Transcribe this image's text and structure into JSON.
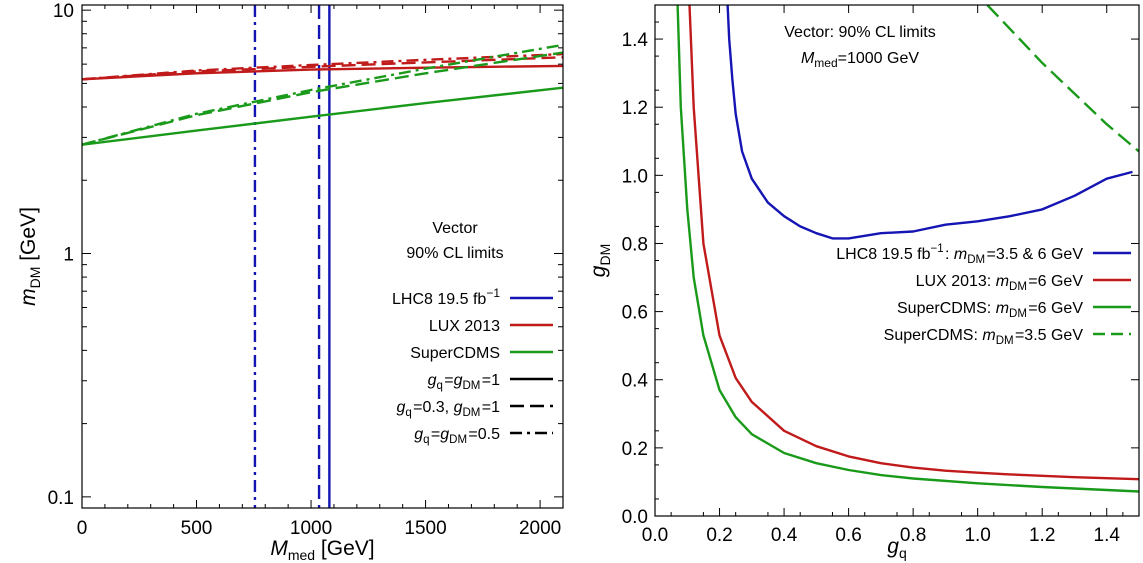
{
  "chart_data": [
    {
      "type": "line",
      "title": "",
      "xlabel_main": "M",
      "xlabel_sub": "med",
      "xlabel_unit": " [GeV]",
      "ylabel_main": "m",
      "ylabel_sub": "DM",
      "ylabel_unit": " [GeV]",
      "xlim": [
        0,
        2100
      ],
      "ylim": [
        0.09,
        10.5
      ],
      "y_scale": "log",
      "x_ticks": [
        0,
        500,
        1000,
        1500,
        2000
      ],
      "x_tick_labels": [
        "0",
        "500",
        "1000",
        "1500",
        "2000"
      ],
      "y_ticks": [
        0.1,
        1,
        10
      ],
      "y_tick_labels": [
        "0.1",
        "1",
        "10"
      ],
      "grid": false,
      "legend_placement": "right",
      "legend_title_1": "Vector",
      "legend_title_2": "90% CL limits",
      "legend": [
        {
          "text": "LHC8 19.5 fb",
          "sup": "−1",
          "color": "#1515b3",
          "dash": "solid"
        },
        {
          "text": "LUX 2013",
          "color": "#c01a1a",
          "dash": "solid"
        },
        {
          "text": "SuperCDMS",
          "color": "#1a9a1a",
          "dash": "solid"
        },
        {
          "rich": "g_q=g_DM=1",
          "color": "#000000",
          "dash": "solid"
        },
        {
          "rich": "g_q=0.3, g_DM=1",
          "color": "#000000",
          "dash": "dashed"
        },
        {
          "rich": "g_q=g_DM=0.5",
          "color": "#000000",
          "dash": "dashdot"
        }
      ],
      "series": [
        {
          "experiment": "LHC8",
          "coupling": "g_q=g_DM=1",
          "color": "#1515b3",
          "dash": "solid",
          "vertical_x": 1080
        },
        {
          "experiment": "LHC8",
          "coupling": "g_q=0.3, g_DM=1",
          "color": "#1515b3",
          "dash": "dashed",
          "vertical_x": 1035
        },
        {
          "experiment": "LHC8",
          "coupling": "g_q=g_DM=0.5",
          "color": "#1515b3",
          "dash": "dashdot",
          "vertical_x": 755
        },
        {
          "experiment": "LUX 2013",
          "coupling": "g_q=g_DM=1",
          "color": "#c01a1a",
          "dash": "solid",
          "x": [
            0,
            500,
            1000,
            1500,
            2100
          ],
          "y": [
            5.2,
            5.5,
            5.7,
            5.8,
            5.9
          ]
        },
        {
          "experiment": "LUX 2013",
          "coupling": "g_q=0.3, g_DM=1",
          "color": "#c01a1a",
          "dash": "dashed",
          "x": [
            0,
            500,
            1000,
            1500,
            2100
          ],
          "y": [
            5.2,
            5.6,
            5.85,
            6.1,
            6.4
          ]
        },
        {
          "experiment": "LUX 2013",
          "coupling": "g_q=g_DM=0.5",
          "color": "#c01a1a",
          "dash": "dashdot",
          "x": [
            0,
            500,
            1000,
            1500,
            2100
          ],
          "y": [
            5.2,
            5.65,
            5.95,
            6.25,
            6.6
          ]
        },
        {
          "experiment": "SuperCDMS",
          "coupling": "g_q=g_DM=1",
          "color": "#1a9a1a",
          "dash": "solid",
          "x": [
            0,
            500,
            1000,
            1500,
            2100
          ],
          "y": [
            2.8,
            3.2,
            3.65,
            4.15,
            4.8
          ]
        },
        {
          "experiment": "SuperCDMS",
          "coupling": "g_q=0.3, g_DM=1",
          "color": "#1a9a1a",
          "dash": "dashed",
          "x": [
            0,
            500,
            1000,
            1500,
            2100
          ],
          "y": [
            2.8,
            3.7,
            4.6,
            5.5,
            6.7
          ]
        },
        {
          "experiment": "SuperCDMS",
          "coupling": "g_q=g_DM=0.5",
          "color": "#1a9a1a",
          "dash": "dashdot",
          "x": [
            0,
            500,
            1000,
            1500,
            2100
          ],
          "y": [
            2.8,
            3.75,
            4.7,
            5.75,
            7.2
          ]
        }
      ]
    },
    {
      "type": "line",
      "title": "",
      "annotation_1": "Vector: 90% CL limits",
      "annotation_2_main": "M",
      "annotation_2_sub": "med",
      "annotation_2_rest": "=1000 GeV",
      "xlabel_main": "g",
      "xlabel_sub": "q",
      "ylabel_main": "g",
      "ylabel_sub": "DM",
      "xlim": [
        0,
        1.5
      ],
      "ylim": [
        0,
        1.5
      ],
      "x_ticks": [
        0.0,
        0.2,
        0.4,
        0.6,
        0.8,
        1.0,
        1.2,
        1.4
      ],
      "x_tick_labels": [
        "0.0",
        "0.2",
        "0.4",
        "0.6",
        "0.8",
        "1.0",
        "1.2",
        "1.4"
      ],
      "y_ticks": [
        0.0,
        0.2,
        0.4,
        0.6,
        0.8,
        1.0,
        1.2,
        1.4
      ],
      "y_tick_labels": [
        "0.0",
        "0.2",
        "0.4",
        "0.6",
        "0.8",
        "1.0",
        "1.2",
        "1.4"
      ],
      "grid": false,
      "legend_placement": "right",
      "legend": [
        {
          "rich": "LHC8 19.5 fb^-1: m_DM=3.5 & 6 GeV",
          "color": "#1515b3",
          "dash": "solid"
        },
        {
          "rich": "LUX 2013: m_DM=6 GeV",
          "color": "#c01a1a",
          "dash": "solid"
        },
        {
          "rich": "SuperCDMS: m_DM=6 GeV",
          "color": "#1a9a1a",
          "dash": "solid"
        },
        {
          "rich": "SuperCDMS: m_DM=3.5 GeV",
          "color": "#1a9a1a",
          "dash": "dashed"
        }
      ],
      "series": [
        {
          "name": "LHC8 19.5 fb^-1: m_DM=3.5 & 6 GeV",
          "color": "#1515b3",
          "dash": "solid",
          "x": [
            0.225,
            0.23,
            0.24,
            0.25,
            0.27,
            0.3,
            0.35,
            0.4,
            0.45,
            0.5,
            0.55,
            0.6,
            0.7,
            0.8,
            0.9,
            1.0,
            1.1,
            1.2,
            1.3,
            1.4,
            1.48
          ],
          "y": [
            1.5,
            1.4,
            1.28,
            1.18,
            1.07,
            0.99,
            0.92,
            0.88,
            0.85,
            0.83,
            0.815,
            0.815,
            0.83,
            0.835,
            0.855,
            0.865,
            0.88,
            0.9,
            0.94,
            0.99,
            1.01
          ]
        },
        {
          "name": "LUX 2013: m_DM=6 GeV",
          "color": "#c01a1a",
          "dash": "solid",
          "x": [
            0.107,
            0.12,
            0.15,
            0.2,
            0.25,
            0.3,
            0.4,
            0.5,
            0.6,
            0.7,
            0.8,
            0.9,
            1.0,
            1.1,
            1.2,
            1.3,
            1.4,
            1.5
          ],
          "y": [
            1.5,
            1.2,
            0.8,
            0.53,
            0.405,
            0.335,
            0.25,
            0.205,
            0.175,
            0.155,
            0.142,
            0.133,
            0.127,
            0.122,
            0.118,
            0.114,
            0.111,
            0.108
          ]
        },
        {
          "name": "SuperCDMS: m_DM=6 GeV",
          "color": "#1a9a1a",
          "dash": "solid",
          "x": [
            0.07,
            0.08,
            0.1,
            0.12,
            0.15,
            0.2,
            0.25,
            0.3,
            0.4,
            0.5,
            0.6,
            0.7,
            0.8,
            1.0,
            1.2,
            1.5
          ],
          "y": [
            1.5,
            1.2,
            0.9,
            0.7,
            0.53,
            0.37,
            0.29,
            0.24,
            0.185,
            0.155,
            0.135,
            0.12,
            0.11,
            0.096,
            0.085,
            0.072
          ]
        },
        {
          "name": "SuperCDMS: m_DM=3.5 GeV",
          "color": "#1a9a1a",
          "dash": "dashed",
          "x": [
            1.03,
            1.1,
            1.2,
            1.3,
            1.4,
            1.5
          ],
          "y": [
            1.5,
            1.43,
            1.33,
            1.24,
            1.15,
            1.07
          ]
        }
      ]
    }
  ]
}
